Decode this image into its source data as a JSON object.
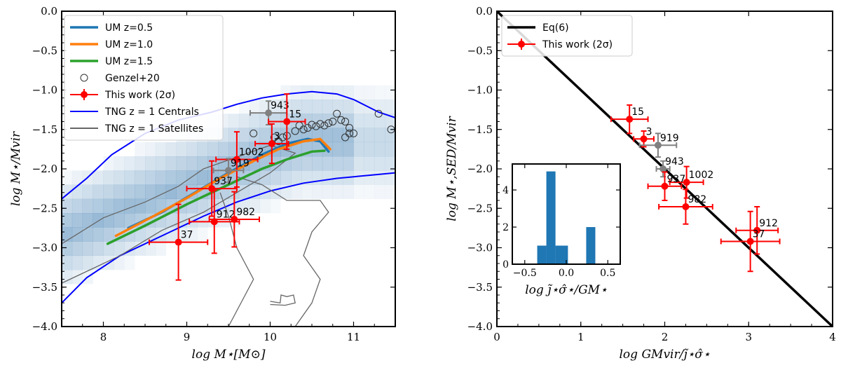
{
  "chart_data": [
    {
      "type": "scatter",
      "xlabel": "log M⋆[M⊙]",
      "ylabel": "log M⋆/Mvir",
      "xlim": [
        7.5,
        11.5
      ],
      "ylim": [
        -4.0,
        0.0
      ],
      "xticks": [
        8,
        9,
        10,
        11
      ],
      "yticks": [
        -4.0,
        -3.5,
        -3.0,
        -2.5,
        -2.0,
        -1.5,
        -1.0,
        -0.5,
        0.0
      ],
      "legend_position": "top-left",
      "legend": [
        {
          "label": "UM z=0.5",
          "color": "#1f77b4",
          "kind": "line"
        },
        {
          "label": "UM z=1.0",
          "color": "#ff7f0e",
          "kind": "line"
        },
        {
          "label": "UM z=1.5",
          "color": "#2ca02c",
          "kind": "line"
        },
        {
          "label": "Genzel+20",
          "color": "#333333",
          "kind": "circle"
        },
        {
          "label": "This work (2σ)",
          "color": "#ff0000",
          "kind": "errorbar"
        },
        {
          "label": "TNG z = 1 Centrals",
          "color": "#0000ff",
          "kind": "line"
        },
        {
          "label": "TNG z = 1 Satellites",
          "color": "#666666",
          "kind": "line"
        }
      ],
      "series": [
        {
          "name": "UM z=0.5",
          "color": "#1f77b4",
          "x": [
            8.3,
            8.7,
            9.1,
            9.5,
            9.9,
            10.2,
            10.45,
            10.6,
            10.7
          ],
          "y": [
            -2.75,
            -2.55,
            -2.3,
            -2.05,
            -1.82,
            -1.68,
            -1.62,
            -1.65,
            -1.78
          ]
        },
        {
          "name": "UM z=1.0",
          "color": "#ff7f0e",
          "x": [
            8.15,
            8.6,
            9.0,
            9.4,
            9.8,
            10.1,
            10.4,
            10.6,
            10.72
          ],
          "y": [
            -2.85,
            -2.6,
            -2.37,
            -2.12,
            -1.9,
            -1.75,
            -1.65,
            -1.62,
            -1.75
          ]
        },
        {
          "name": "UM z=1.5",
          "color": "#2ca02c",
          "x": [
            8.05,
            8.5,
            9.0,
            9.5,
            9.9,
            10.2,
            10.5,
            10.65
          ],
          "y": [
            -2.95,
            -2.72,
            -2.45,
            -2.2,
            -2.0,
            -1.88,
            -1.78,
            -1.77
          ]
        },
        {
          "name": "TNG z = 1 Centrals",
          "color": "#0000ff",
          "x": [
            7.5,
            7.8,
            8.1,
            8.5,
            8.9,
            9.3,
            9.6,
            9.9,
            10.2,
            10.5,
            10.8,
            11.0,
            11.3,
            11.5
          ],
          "y": [
            -2.38,
            -2.12,
            -1.82,
            -1.55,
            -1.38,
            -1.28,
            -1.18,
            -1.1,
            -1.05,
            -1.02,
            -1.05,
            -1.12,
            -1.28,
            -1.35
          ]
        },
        {
          "name": "TNG z = 1 Centrals lower",
          "color": "#0000ff",
          "x": [
            7.5,
            7.8,
            8.2,
            8.7,
            9.2,
            9.6,
            10.0,
            10.4,
            10.8,
            11.2,
            11.5
          ],
          "y": [
            -3.7,
            -3.38,
            -3.1,
            -2.85,
            -2.6,
            -2.42,
            -2.28,
            -2.18,
            -2.12,
            -2.08,
            -2.05
          ]
        }
      ],
      "genzel20": {
        "x": [
          9.8,
          10.05,
          10.1,
          10.15,
          10.2,
          10.3,
          10.35,
          10.4,
          10.45,
          10.5,
          10.55,
          10.6,
          10.65,
          10.7,
          10.75,
          10.8,
          10.85,
          10.9,
          10.95,
          11.0,
          11.3,
          11.45,
          10.9,
          10.95
        ],
        "y": [
          -1.55,
          -1.6,
          -1.65,
          -1.6,
          -1.58,
          -1.52,
          -1.45,
          -1.5,
          -1.48,
          -1.44,
          -1.46,
          -1.43,
          -1.45,
          -1.42,
          -1.4,
          -1.3,
          -1.38,
          -1.4,
          -1.48,
          -1.55,
          -1.3,
          -1.5,
          -1.6,
          -1.55
        ]
      },
      "this_work": [
        {
          "label": "943",
          "x": 9.98,
          "y": -1.29,
          "xerr": 0.22,
          "yerr": 0.15,
          "color": "#808080"
        },
        {
          "label": "15",
          "x": 10.2,
          "y": -1.4,
          "xerr": 0.22,
          "yerr": 0.35,
          "color": "#ff0000"
        },
        {
          "label": "3",
          "x": 10.02,
          "y": -1.68,
          "xerr": 0.2,
          "yerr": 0.25,
          "color": "#ff0000"
        },
        {
          "label": "1002",
          "x": 9.6,
          "y": -1.88,
          "xerr": 0.25,
          "yerr": 0.35,
          "color": "#ff0000"
        },
        {
          "label": "919",
          "x": 9.5,
          "y": -2.02,
          "xerr": 0.18,
          "yerr": 0.15,
          "color": "#808080"
        },
        {
          "label": "937",
          "x": 9.3,
          "y": -2.25,
          "xerr": 0.3,
          "yerr": 0.35,
          "color": "#ff0000"
        },
        {
          "label": "912",
          "x": 9.33,
          "y": -2.67,
          "xerr": 0.3,
          "yerr": 0.4,
          "color": "#ff0000"
        },
        {
          "label": "982",
          "x": 9.57,
          "y": -2.64,
          "xerr": 0.3,
          "yerr": 0.35,
          "color": "#ff0000"
        },
        {
          "label": "37",
          "x": 8.9,
          "y": -2.93,
          "xerr": 0.35,
          "yerr": 0.48,
          "color": "#ff0000"
        }
      ]
    },
    {
      "type": "scatter",
      "xlabel": "log GMvir/j̃⋆σ̂⋆",
      "ylabel": "log M⋆,SED/Mvir",
      "xlim": [
        0,
        4
      ],
      "ylim": [
        -4.0,
        0.0
      ],
      "xticks": [
        0,
        1,
        2,
        3,
        4
      ],
      "yticks": [
        -4.0,
        -3.5,
        -3.0,
        -2.5,
        -2.0,
        -1.5,
        -1.0,
        -0.5,
        0.0
      ],
      "legend_position": "top-left",
      "legend": [
        {
          "label": "Eq(6)",
          "color": "#000000",
          "kind": "line"
        },
        {
          "label": "This work (2σ)",
          "color": "#ff0000",
          "kind": "errorbar"
        }
      ],
      "series": [
        {
          "name": "Eq(6)",
          "color": "#000000",
          "x": [
            0,
            4
          ],
          "y": [
            0,
            -4
          ]
        }
      ],
      "this_work": [
        {
          "label": "15",
          "x": 1.58,
          "y": -1.37,
          "xerr": 0.22,
          "yerr": 0.18,
          "color": "#ff0000"
        },
        {
          "label": "3",
          "x": 1.75,
          "y": -1.62,
          "xerr": 0.12,
          "yerr": 0.1,
          "color": "#ff0000"
        },
        {
          "label": "919",
          "x": 1.92,
          "y": -1.7,
          "xerr": 0.22,
          "yerr": 0.15,
          "color": "#808080"
        },
        {
          "label": "943",
          "x": 1.98,
          "y": -2.0,
          "xerr": 0.08,
          "yerr": 0.1,
          "color": "#808080"
        },
        {
          "label": "1002",
          "x": 2.26,
          "y": -2.17,
          "xerr": 0.2,
          "yerr": 0.2,
          "color": "#ff0000"
        },
        {
          "label": "937",
          "x": 2.0,
          "y": -2.22,
          "xerr": 0.2,
          "yerr": 0.18,
          "color": "#ff0000"
        },
        {
          "label": "982",
          "x": 2.25,
          "y": -2.48,
          "xerr": 0.32,
          "yerr": 0.22,
          "color": "#ff0000"
        },
        {
          "label": "912",
          "x": 3.1,
          "y": -2.78,
          "xerr": 0.25,
          "yerr": 0.3,
          "color": "#ff0000"
        },
        {
          "label": "37",
          "x": 3.02,
          "y": -2.92,
          "xerr": 0.35,
          "yerr": 0.38,
          "color": "#ff0000"
        }
      ],
      "inset": {
        "type": "bar",
        "xlabel": "log j̃⋆σ̂⋆/GM⋆",
        "xlim": [
          -0.65,
          0.65
        ],
        "ylim": [
          0,
          5.4
        ],
        "xticks": [
          -0.5,
          0.0,
          0.5
        ],
        "yticks": [
          0,
          2,
          4
        ],
        "bar_color": "#1f77b4",
        "bin_edges": [
          -0.35,
          -0.24,
          -0.13,
          0.02,
          0.13,
          0.24,
          0.35
        ],
        "counts": [
          1,
          5,
          1,
          0,
          0,
          2
        ]
      }
    }
  ]
}
